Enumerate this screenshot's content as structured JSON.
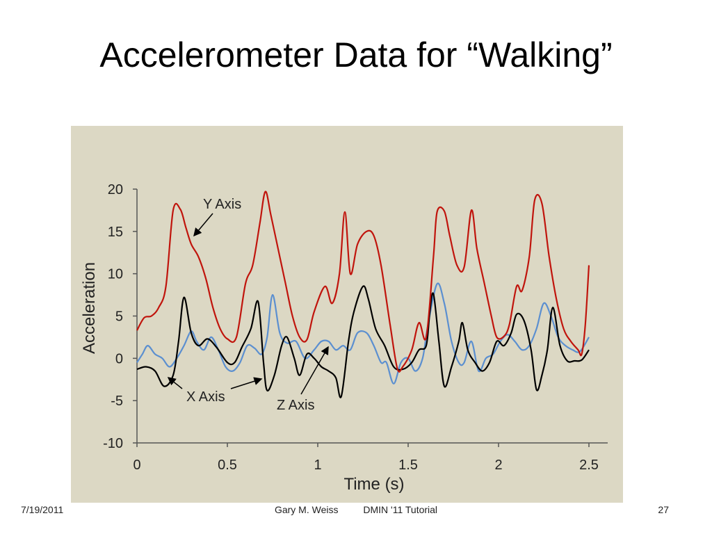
{
  "slide": {
    "title": "Accelerometer Data for “Walking”",
    "footer": {
      "date": "7/19/2011",
      "author": "Gary M. Weiss",
      "event": "DMIN '11 Tutorial",
      "page": "27"
    }
  },
  "colors": {
    "panel_background": "#dcd8c4",
    "y_axis_series": "#c0140c",
    "x_axis_series": "#000000",
    "z_axis_series": "#5b8fd0",
    "axes": "#555555"
  },
  "chart_data": {
    "type": "line",
    "title": "",
    "xlabel": "Time (s)",
    "ylabel": "Acceleration",
    "xlim": [
      0,
      2.5
    ],
    "ylim": [
      -10,
      20
    ],
    "xticks": [
      0,
      0.5,
      1,
      1.5,
      2,
      2.5
    ],
    "xtick_labels": [
      "0",
      "0.5",
      "1",
      "1.5",
      "2",
      "2.5"
    ],
    "yticks": [
      -10,
      -5,
      0,
      5,
      10,
      15,
      20
    ],
    "ytick_labels": [
      "-10",
      "-5",
      "0",
      "5",
      "10",
      "15",
      "20"
    ],
    "grid": false,
    "legend": "none (series labeled by arrow annotations)",
    "annotations": [
      {
        "text": "Y Axis",
        "series": "Y Axis"
      },
      {
        "text": "X Axis",
        "series": "X Axis"
      },
      {
        "text": "Z Axis",
        "series": "Z Axis"
      }
    ],
    "series": [
      {
        "name": "Y Axis",
        "color": "#c0140c",
        "points": [
          [
            0,
            3.3
          ],
          [
            0.04,
            4.8
          ],
          [
            0.08,
            5.0
          ],
          [
            0.12,
            6.0
          ],
          [
            0.16,
            8.5
          ],
          [
            0.2,
            17.5
          ],
          [
            0.24,
            17.6
          ],
          [
            0.27,
            15.5
          ],
          [
            0.3,
            13.5
          ],
          [
            0.34,
            12.0
          ],
          [
            0.38,
            9.5
          ],
          [
            0.42,
            6.0
          ],
          [
            0.46,
            3.5
          ],
          [
            0.5,
            2.3
          ],
          [
            0.55,
            2.5
          ],
          [
            0.6,
            8.8
          ],
          [
            0.64,
            11.0
          ],
          [
            0.68,
            16.0
          ],
          [
            0.71,
            19.7
          ],
          [
            0.74,
            17.0
          ],
          [
            0.78,
            13.0
          ],
          [
            0.82,
            9.0
          ],
          [
            0.86,
            5.0
          ],
          [
            0.9,
            2.5
          ],
          [
            0.94,
            2.2
          ],
          [
            0.98,
            5.5
          ],
          [
            1.04,
            8.5
          ],
          [
            1.08,
            6.5
          ],
          [
            1.12,
            10.0
          ],
          [
            1.15,
            17.3
          ],
          [
            1.18,
            10.0
          ],
          [
            1.22,
            13.5
          ],
          [
            1.27,
            15.0
          ],
          [
            1.31,
            14.5
          ],
          [
            1.35,
            11.0
          ],
          [
            1.4,
            4.0
          ],
          [
            1.44,
            -1.2
          ],
          [
            1.47,
            -1.0
          ],
          [
            1.52,
            1.0
          ],
          [
            1.56,
            4.2
          ],
          [
            1.6,
            2.5
          ],
          [
            1.64,
            12.0
          ],
          [
            1.66,
            17.3
          ],
          [
            1.7,
            17.4
          ],
          [
            1.73,
            14.5
          ],
          [
            1.77,
            11.0
          ],
          [
            1.81,
            10.8
          ],
          [
            1.85,
            17.5
          ],
          [
            1.88,
            13.0
          ],
          [
            1.92,
            9.0
          ],
          [
            1.96,
            5.0
          ],
          [
            1.99,
            2.5
          ],
          [
            2.03,
            2.6
          ],
          [
            2.06,
            4.0
          ],
          [
            2.1,
            8.5
          ],
          [
            2.13,
            8.0
          ],
          [
            2.17,
            12.0
          ],
          [
            2.2,
            18.7
          ],
          [
            2.24,
            18.3
          ],
          [
            2.28,
            12.0
          ],
          [
            2.32,
            7.0
          ],
          [
            2.36,
            3.5
          ],
          [
            2.4,
            2.0
          ],
          [
            2.44,
            1.0
          ],
          [
            2.46,
            0.5
          ],
          [
            2.48,
            4.0
          ],
          [
            2.5,
            11.0
          ]
        ]
      },
      {
        "name": "X Axis",
        "color": "#000000",
        "points": [
          [
            0,
            -1.3
          ],
          [
            0.05,
            -1.0
          ],
          [
            0.1,
            -1.5
          ],
          [
            0.15,
            -3.3
          ],
          [
            0.2,
            -2.0
          ],
          [
            0.23,
            2.0
          ],
          [
            0.26,
            7.2
          ],
          [
            0.3,
            3.0
          ],
          [
            0.34,
            1.5
          ],
          [
            0.39,
            2.3
          ],
          [
            0.44,
            1.3
          ],
          [
            0.5,
            -0.5
          ],
          [
            0.54,
            -0.5
          ],
          [
            0.58,
            1.3
          ],
          [
            0.63,
            3.5
          ],
          [
            0.67,
            6.7
          ],
          [
            0.7,
            -0.5
          ],
          [
            0.72,
            -3.8
          ],
          [
            0.76,
            -2.0
          ],
          [
            0.8,
            1.5
          ],
          [
            0.83,
            2.5
          ],
          [
            0.87,
            0.0
          ],
          [
            0.9,
            -2.0
          ],
          [
            0.94,
            0.5
          ],
          [
            0.98,
            0.0
          ],
          [
            1.02,
            -1.0
          ],
          [
            1.06,
            -1.5
          ],
          [
            1.1,
            -2.3
          ],
          [
            1.13,
            -4.5
          ],
          [
            1.17,
            2.0
          ],
          [
            1.2,
            5.5
          ],
          [
            1.25,
            8.5
          ],
          [
            1.28,
            7.0
          ],
          [
            1.32,
            3.5
          ],
          [
            1.37,
            1.5
          ],
          [
            1.42,
            -1.0
          ],
          [
            1.47,
            -1.3
          ],
          [
            1.52,
            -0.5
          ],
          [
            1.56,
            1.0
          ],
          [
            1.6,
            1.5
          ],
          [
            1.62,
            5.5
          ],
          [
            1.64,
            7.6
          ],
          [
            1.67,
            2.0
          ],
          [
            1.7,
            -3.3
          ],
          [
            1.74,
            -1.0
          ],
          [
            1.78,
            2.0
          ],
          [
            1.8,
            4.2
          ],
          [
            1.83,
            1.0
          ],
          [
            1.87,
            -0.5
          ],
          [
            1.91,
            -1.5
          ],
          [
            1.95,
            -0.5
          ],
          [
            1.99,
            2.0
          ],
          [
            2.03,
            1.5
          ],
          [
            2.07,
            3.0
          ],
          [
            2.1,
            5.2
          ],
          [
            2.14,
            4.5
          ],
          [
            2.18,
            1.0
          ],
          [
            2.21,
            -3.7
          ],
          [
            2.24,
            -2.0
          ],
          [
            2.27,
            1.0
          ],
          [
            2.3,
            6.0
          ],
          [
            2.34,
            1.5
          ],
          [
            2.38,
            -0.3
          ],
          [
            2.42,
            -0.3
          ],
          [
            2.46,
            -0.2
          ],
          [
            2.5,
            1.0
          ]
        ]
      },
      {
        "name": "Z Axis",
        "color": "#5b8fd0",
        "points": [
          [
            0,
            -0.5
          ],
          [
            0.03,
            0.5
          ],
          [
            0.06,
            1.5
          ],
          [
            0.1,
            0.5
          ],
          [
            0.14,
            0.0
          ],
          [
            0.18,
            -1.0
          ],
          [
            0.22,
            0.0
          ],
          [
            0.26,
            1.5
          ],
          [
            0.3,
            3.2
          ],
          [
            0.33,
            2.0
          ],
          [
            0.37,
            1.0
          ],
          [
            0.41,
            2.5
          ],
          [
            0.45,
            1.0
          ],
          [
            0.49,
            -1.0
          ],
          [
            0.53,
            -1.5
          ],
          [
            0.57,
            -0.5
          ],
          [
            0.61,
            1.5
          ],
          [
            0.65,
            1.2
          ],
          [
            0.69,
            0.5
          ],
          [
            0.72,
            2.5
          ],
          [
            0.75,
            7.5
          ],
          [
            0.79,
            3.0
          ],
          [
            0.83,
            1.8
          ],
          [
            0.88,
            2.0
          ],
          [
            0.93,
            0.0
          ],
          [
            0.98,
            1.0
          ],
          [
            1.02,
            2.0
          ],
          [
            1.06,
            2.0
          ],
          [
            1.1,
            1.0
          ],
          [
            1.14,
            1.5
          ],
          [
            1.18,
            1.0
          ],
          [
            1.22,
            3.0
          ],
          [
            1.27,
            3.0
          ],
          [
            1.31,
            1.5
          ],
          [
            1.35,
            -0.5
          ],
          [
            1.38,
            -0.5
          ],
          [
            1.42,
            -3.0
          ],
          [
            1.46,
            -0.5
          ],
          [
            1.5,
            0.0
          ],
          [
            1.54,
            -1.5
          ],
          [
            1.58,
            0.0
          ],
          [
            1.61,
            4.0
          ],
          [
            1.66,
            8.8
          ],
          [
            1.7,
            6.5
          ],
          [
            1.74,
            2.0
          ],
          [
            1.78,
            -0.5
          ],
          [
            1.81,
            -0.5
          ],
          [
            1.85,
            2.0
          ],
          [
            1.89,
            -1.5
          ],
          [
            1.93,
            0.0
          ],
          [
            1.97,
            0.5
          ],
          [
            2.01,
            2.0
          ],
          [
            2.05,
            2.8
          ],
          [
            2.09,
            2.0
          ],
          [
            2.13,
            1.0
          ],
          [
            2.17,
            1.5
          ],
          [
            2.21,
            3.5
          ],
          [
            2.25,
            6.5
          ],
          [
            2.29,
            5.0
          ],
          [
            2.33,
            2.5
          ],
          [
            2.37,
            1.5
          ],
          [
            2.41,
            1.0
          ],
          [
            2.45,
            0.8
          ],
          [
            2.5,
            2.5
          ]
        ]
      }
    ]
  }
}
